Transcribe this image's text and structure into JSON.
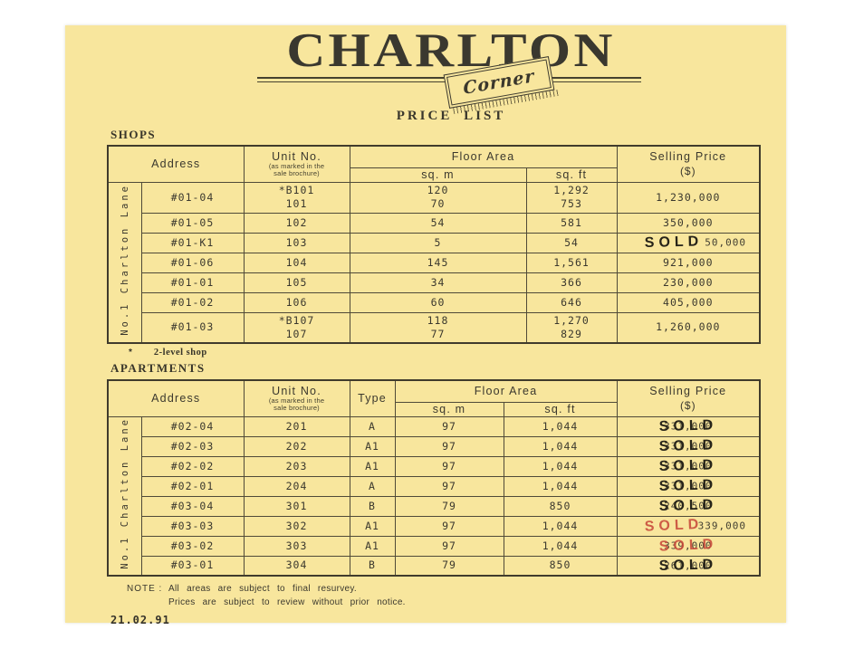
{
  "stamp_text": "SOLD",
  "colors": {
    "paper": "#f8e69d",
    "ink": "#3b382e",
    "stamp_black": "#272419",
    "stamp_red": "#c8493b"
  },
  "brand": {
    "title": "CHARLTON",
    "badge": "Corner",
    "subtitle": "PRICE LIST"
  },
  "shops": {
    "section_label": "SHOPS",
    "address_group": "No.1 Charlton Lane",
    "headers": {
      "address": "Address",
      "unit": "Unit No.",
      "unit_note1": "(as marked in the",
      "unit_note2": "sale brochure)",
      "floor_area": "Floor Area",
      "sqm": "sq. m",
      "sqft": "sq. ft",
      "price": "Selling Price",
      "price_unit": "($)"
    },
    "rows": [
      {
        "address": "#01-04",
        "unit": [
          "*B101",
          "101"
        ],
        "sqm": [
          "120",
          "70"
        ],
        "sqft": [
          "1,292",
          "753"
        ],
        "price": "1,230,000"
      },
      {
        "address": "#01-05",
        "unit": [
          "102"
        ],
        "sqm": [
          "54"
        ],
        "sqft": [
          "581"
        ],
        "price": "350,000"
      },
      {
        "address": "#01-K1",
        "unit": [
          "103"
        ],
        "sqm": [
          "5"
        ],
        "sqft": [
          "54"
        ],
        "price": "50,000",
        "sold": "black",
        "sold_pos": "left"
      },
      {
        "address": "#01-06",
        "unit": [
          "104"
        ],
        "sqm": [
          "145"
        ],
        "sqft": [
          "1,561"
        ],
        "price": "921,000"
      },
      {
        "address": "#01-01",
        "unit": [
          "105"
        ],
        "sqm": [
          "34"
        ],
        "sqft": [
          "366"
        ],
        "price": "230,000"
      },
      {
        "address": "#01-02",
        "unit": [
          "106"
        ],
        "sqm": [
          "60"
        ],
        "sqft": [
          "646"
        ],
        "price": "405,000"
      },
      {
        "address": "#01-03",
        "unit": [
          "*B107",
          "107"
        ],
        "sqm": [
          "118",
          "77"
        ],
        "sqft": [
          "1,270",
          "829"
        ],
        "price": "1,260,000"
      }
    ],
    "footnote_mark": "*",
    "footnote_text": "2-level shop"
  },
  "apartments": {
    "section_label": "APARTMENTS",
    "address_group": "No.1 Charlton Lane",
    "headers": {
      "address": "Address",
      "unit": "Unit No.",
      "unit_note1": "(as marked in the",
      "unit_note2": "sale brochure)",
      "type": "Type",
      "floor_area": "Floor Area",
      "sqm": "sq. m",
      "sqft": "sq. ft",
      "price": "Selling Price",
      "price_unit": "($)"
    },
    "rows": [
      {
        "address": "#02-04",
        "unit": [
          "201"
        ],
        "type": "A",
        "sqm": [
          "97"
        ],
        "sqft": [
          "1,044"
        ],
        "price": "331,000",
        "sold": "black",
        "sold_pos": "over"
      },
      {
        "address": "#02-03",
        "unit": [
          "202"
        ],
        "type": "A1",
        "sqm": [
          "97"
        ],
        "sqft": [
          "1,044"
        ],
        "price": "331,000",
        "sold": "black",
        "sold_pos": "over"
      },
      {
        "address": "#02-02",
        "unit": [
          "203"
        ],
        "type": "A1",
        "sqm": [
          "97"
        ],
        "sqft": [
          "1,044"
        ],
        "price": "331,000",
        "sold": "black",
        "sold_pos": "over"
      },
      {
        "address": "#02-01",
        "unit": [
          "204"
        ],
        "type": "A",
        "sqm": [
          "97"
        ],
        "sqft": [
          "1,044"
        ],
        "price": "331,000",
        "sold": "black",
        "sold_pos": "over"
      },
      {
        "address": "#03-04",
        "unit": [
          "301"
        ],
        "type": "B",
        "sqm": [
          "79"
        ],
        "sqft": [
          "850"
        ],
        "price": "240,500",
        "sold": "black",
        "sold_pos": "over"
      },
      {
        "address": "#03-03",
        "unit": [
          "302"
        ],
        "type": "A1",
        "sqm": [
          "97"
        ],
        "sqft": [
          "1,044"
        ],
        "price": "339,000",
        "sold": "red",
        "sold_pos": "left"
      },
      {
        "address": "#03-02",
        "unit": [
          "303"
        ],
        "type": "A1",
        "sqm": [
          "97"
        ],
        "sqft": [
          "1,044"
        ],
        "price": "339,000",
        "sold": "red",
        "sold_pos": "over"
      },
      {
        "address": "#03-01",
        "unit": [
          "304"
        ],
        "type": "B",
        "sqm": [
          "79"
        ],
        "sqft": [
          "850"
        ],
        "price": "261,000",
        "sold": "black",
        "sold_pos": "over"
      }
    ]
  },
  "notes": {
    "label": "NOTE :",
    "line1": "All areas are subject to final resurvey.",
    "line2": "Prices are subject to review without prior notice.",
    "date": "21.02.91"
  }
}
